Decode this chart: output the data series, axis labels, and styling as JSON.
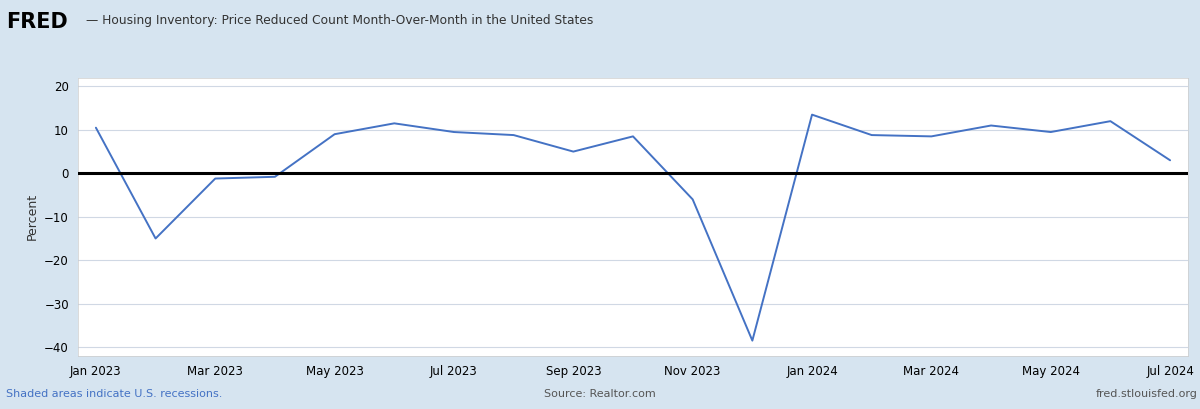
{
  "title": "Housing Inventory: Price Reduced Count Month-Over-Month in the United States",
  "ylabel": "Percent",
  "outer_bg": "#d6e4f0",
  "plot_bg": "#ffffff",
  "line_color": "#4472c4",
  "zero_line_color": "#000000",
  "grid_color": "#d0d8e4",
  "footer_left": "Shaded areas indicate U.S. recessions.",
  "footer_center": "Source: Realtor.com",
  "footer_right": "fred.stlouisfed.org",
  "ylim": [
    -42,
    22
  ],
  "yticks": [
    -40,
    -30,
    -20,
    -10,
    0,
    10,
    20
  ],
  "tick_labels": [
    "Jan 2023",
    "Mar 2023",
    "May 2023",
    "Jul 2023",
    "Sep 2023",
    "Nov 2023",
    "Jan 2024",
    "Mar 2024",
    "May 2024",
    "Jul 2024"
  ],
  "tick_positions": [
    0,
    2,
    4,
    6,
    8,
    10,
    12,
    14,
    16,
    18
  ],
  "values": [
    10.5,
    -15.0,
    -1.2,
    -0.8,
    9.0,
    11.5,
    9.5,
    8.8,
    5.0,
    8.5,
    -6.0,
    -38.5,
    13.5,
    8.8,
    8.5,
    11.0,
    9.5,
    12.0,
    3.0
  ]
}
